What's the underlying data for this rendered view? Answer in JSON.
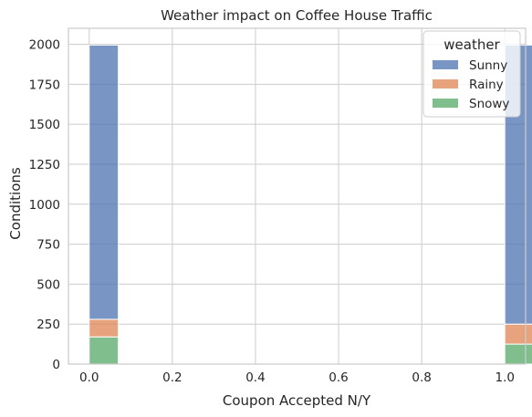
{
  "chart_data": {
    "type": "bar",
    "stacked": true,
    "title": "Weather impact on Coffee House Traffic",
    "xlabel": "Coupon Accepted N/Y",
    "ylabel": "Conditions",
    "xlim": [
      -0.05,
      1.05
    ],
    "ylim": [
      0,
      2100
    ],
    "xticks": [
      "0.0",
      "0.2",
      "0.4",
      "0.6",
      "0.8",
      "1.0"
    ],
    "yticks": [
      "0",
      "250",
      "500",
      "750",
      "1000",
      "1250",
      "1500",
      "1750",
      "2000"
    ],
    "grid": true,
    "legend": {
      "title": "weather",
      "placement": "top-right"
    },
    "bin_width": 0.1,
    "x": [
      0,
      1
    ],
    "series": [
      {
        "name": "Sunny",
        "color": "#4c72b0",
        "values": [
          1715,
          1745
        ]
      },
      {
        "name": "Rainy",
        "color": "#dd8452",
        "values": [
          110,
          125
        ]
      },
      {
        "name": "Snowy",
        "color": "#55a868",
        "values": [
          170,
          125
        ]
      }
    ]
  }
}
